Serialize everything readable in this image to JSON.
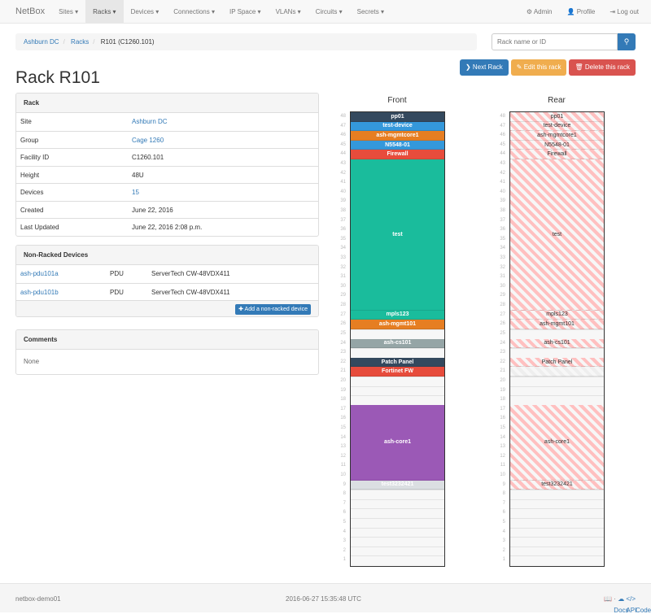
{
  "nav": {
    "brand": "NetBox",
    "items": [
      "Sites ▾",
      "Racks ▾",
      "Devices ▾",
      "Connections ▾",
      "IP Space ▾",
      "VLANs ▾",
      "Circuits ▾",
      "Secrets ▾"
    ],
    "active": 1,
    "right": [
      "⚙ Admin",
      "👤 Profile",
      "⇥ Log out"
    ]
  },
  "breadcrumb": [
    "Ashburn DC",
    "Racks",
    "R101 (C1260.101)"
  ],
  "search": {
    "placeholder": "Rack name or ID",
    "icon": "search-icon"
  },
  "actions": {
    "next": "❯ Next Rack",
    "edit": "✎ Edit this rack",
    "delete": "🗑 Delete this rack"
  },
  "colors": {
    "primary": "#337ab7",
    "warning": "#f0ad4e",
    "danger": "#d9534f"
  },
  "title": "Rack R101",
  "rack_panel": {
    "heading": "Rack",
    "rows": [
      {
        "k": "Site",
        "v": "Ashburn DC",
        "link": true
      },
      {
        "k": "Group",
        "v": "Cage 1260",
        "link": true
      },
      {
        "k": "Facility ID",
        "v": "C1260.101"
      },
      {
        "k": "Height",
        "v": "48U"
      },
      {
        "k": "Devices",
        "v": "15",
        "link": true
      },
      {
        "k": "Created",
        "v": "June 22, 2016"
      },
      {
        "k": "Last Updated",
        "v": "June 22, 2016 2:08 p.m."
      }
    ]
  },
  "nonracked": {
    "heading": "Non-Racked Devices",
    "rows": [
      {
        "name": "ash-pdu101a",
        "role": "PDU",
        "type": "ServerTech CW-48VDX411"
      },
      {
        "name": "ash-pdu101b",
        "role": "PDU",
        "type": "ServerTech CW-48VDX411"
      }
    ],
    "add": "✚ Add a non-racked device"
  },
  "comments": {
    "heading": "Comments",
    "body": "None"
  },
  "rack": {
    "height": 48,
    "front_label": "Front",
    "rear_label": "Rear",
    "devices": [
      {
        "name": "pp01",
        "u": 48,
        "h": 1,
        "color": "#34495e",
        "rear": true
      },
      {
        "name": "test-device",
        "u": 47,
        "h": 1,
        "color": "#3498db",
        "rear": true
      },
      {
        "name": "ash-mgmtcore1",
        "u": 46,
        "h": 1,
        "color": "#e67e22",
        "rear": true
      },
      {
        "name": "N5548-01",
        "u": 45,
        "h": 1,
        "color": "#3498db",
        "rear": true
      },
      {
        "name": "Firewall",
        "u": 44,
        "h": 1,
        "color": "#e74c3c",
        "rear": true
      },
      {
        "name": "test",
        "u": 28,
        "h": 16,
        "color": "#1abc9c",
        "rear": true
      },
      {
        "name": "mpls123",
        "u": 27,
        "h": 1,
        "color": "#1abc9c",
        "rear": true
      },
      {
        "name": "ash-mgmt101",
        "u": 26,
        "h": 1,
        "color": "#e67e22",
        "rear": true
      },
      {
        "name": "ash-cs101",
        "u": 24,
        "h": 1,
        "color": "#95a5a6",
        "rear": true
      },
      {
        "name": "Patch Panel",
        "u": 22,
        "h": 1,
        "color": "#34495e",
        "rear": true
      },
      {
        "name": "Fortinet FW",
        "u": 21,
        "h": 1,
        "color": "#e74c3c",
        "rear": false
      },
      {
        "name": "ash-core1",
        "u": 10,
        "h": 8,
        "color": "#9b59b6",
        "rear": true
      },
      {
        "name": "test3232421",
        "u": 9,
        "h": 1,
        "color": "#dbdfe2",
        "rear": true
      }
    ]
  },
  "footer": {
    "host": "netbox-demo01",
    "time": "2016-06-27 15:35:48 UTC",
    "links": [
      "Docs",
      "API",
      "Code"
    ]
  }
}
